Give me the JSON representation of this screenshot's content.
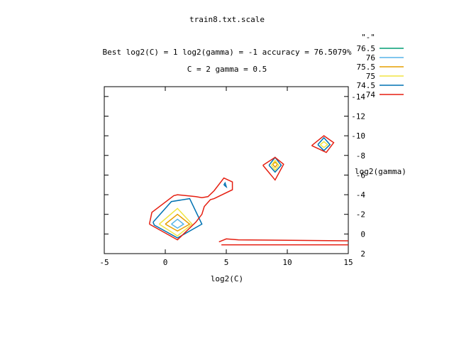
{
  "chart_data": {
    "type": "contour",
    "title": "train8.txt.scale",
    "subtitle_lines": [
      "Best log2(C) = 1  log2(gamma) = -1  accuracy = 76.5079%",
      "C = 2  gamma = 0.5"
    ],
    "xlabel": "log2(C)",
    "ylabel": "log2(gamma)",
    "xlim": [
      -5,
      15
    ],
    "ylim": [
      2.0,
      -15.0
    ],
    "y_reversed": true,
    "x_ticks": [
      -5,
      0,
      5,
      10,
      15
    ],
    "y_ticks": [
      2,
      0,
      -2,
      -4,
      -6,
      -8,
      -10,
      -12,
      -14
    ],
    "y_tick_labels": [
      "2",
      "0",
      "-2",
      "-4",
      "-6",
      "-8",
      "-10",
      "-12",
      "-14"
    ],
    "y_axis_side": "right",
    "grid": false,
    "legend_title": "\"-\"",
    "legend_position": "top-right",
    "series": [
      {
        "name": "76.5",
        "color": "#009e73",
        "paths": []
      },
      {
        "name": "76",
        "color": "#56b4e9",
        "paths": [
          [
            [
              0.5,
              -1
            ],
            [
              1,
              -1.5
            ],
            [
              1.5,
              -1
            ],
            [
              1,
              -0.6
            ],
            [
              0.5,
              -1
            ]
          ]
        ]
      },
      {
        "name": "75.5",
        "color": "#e69f00",
        "paths": [
          [
            [
              0,
              -1
            ],
            [
              1,
              -2
            ],
            [
              2,
              -1
            ],
            [
              1,
              -0.3
            ],
            [
              0,
              -1
            ]
          ],
          [
            [
              8.8,
              -7.1
            ],
            [
              9,
              -7.3
            ],
            [
              9.2,
              -7.1
            ],
            [
              9,
              -6.8
            ],
            [
              8.8,
              -7.1
            ]
          ]
        ]
      },
      {
        "name": "75",
        "color": "#f0e442",
        "paths": [
          [
            [
              -0.5,
              -1
            ],
            [
              1,
              -2.6
            ],
            [
              2.2,
              -1
            ],
            [
              1,
              0.2
            ],
            [
              -0.5,
              -1
            ]
          ],
          [
            [
              12.7,
              -9.1
            ],
            [
              13,
              -9.4
            ],
            [
              13.3,
              -9.1
            ],
            [
              13,
              -8.8
            ],
            [
              12.7,
              -9.1
            ]
          ],
          [
            [
              8.7,
              -7
            ],
            [
              9,
              -7.5
            ],
            [
              9.3,
              -7
            ],
            [
              9,
              -6.5
            ],
            [
              8.7,
              -7
            ]
          ]
        ]
      },
      {
        "name": "74.5",
        "color": "#0072b2",
        "paths": [
          [
            [
              -1,
              -1.2
            ],
            [
              0.5,
              -3.3
            ],
            [
              2,
              -3.6
            ],
            [
              3,
              -1
            ],
            [
              1,
              0.4
            ],
            [
              -0.9,
              -0.9
            ],
            [
              -1,
              -1.2
            ]
          ],
          [
            [
              4.8,
              -5
            ],
            [
              5,
              -4.8
            ],
            [
              4.9,
              -5.2
            ],
            [
              4.8,
              -5
            ]
          ],
          [
            [
              12.5,
              -9.1
            ],
            [
              13,
              -9.8
            ],
            [
              13.5,
              -9.1
            ],
            [
              13,
              -8.5
            ],
            [
              12.5,
              -9.1
            ]
          ],
          [
            [
              8.5,
              -7
            ],
            [
              9,
              -7.8
            ],
            [
              9.5,
              -7
            ],
            [
              9,
              -6.3
            ],
            [
              8.5,
              -7
            ]
          ]
        ]
      },
      {
        "name": "74",
        "color": "#e51e10",
        "paths": [
          [
            [
              -1.3,
              -1
            ],
            [
              -1.1,
              -2.2
            ],
            [
              0.7,
              -3.9
            ],
            [
              1,
              -4
            ],
            [
              2.5,
              -3.8
            ],
            [
              3,
              -3.7
            ],
            [
              3.5,
              -3.8
            ],
            [
              4,
              -4.4
            ],
            [
              4.8,
              -5.7
            ],
            [
              5.5,
              -5.3
            ],
            [
              5.5,
              -4.5
            ],
            [
              4,
              -3.6
            ],
            [
              3.7,
              -3.5
            ],
            [
              3.2,
              -2.8
            ],
            [
              3,
              -2
            ],
            [
              2.5,
              -1.2
            ],
            [
              1,
              0.6
            ],
            [
              -1.3,
              -1
            ]
          ],
          [
            [
              12,
              -9
            ],
            [
              13,
              -10
            ],
            [
              13.8,
              -9.3
            ],
            [
              13.2,
              -8.3
            ],
            [
              12,
              -9
            ]
          ],
          [
            [
              8,
              -7
            ],
            [
              9,
              -7.8
            ],
            [
              9.7,
              -7.1
            ],
            [
              9,
              -5.5
            ],
            [
              8,
              -7
            ]
          ],
          [
            [
              4.4,
              0.8
            ],
            [
              5,
              0.5
            ],
            [
              6,
              0.6
            ],
            [
              15,
              0.7
            ]
          ],
          [
            [
              4.6,
              1.1
            ],
            [
              15,
              1.1
            ]
          ]
        ]
      }
    ]
  }
}
